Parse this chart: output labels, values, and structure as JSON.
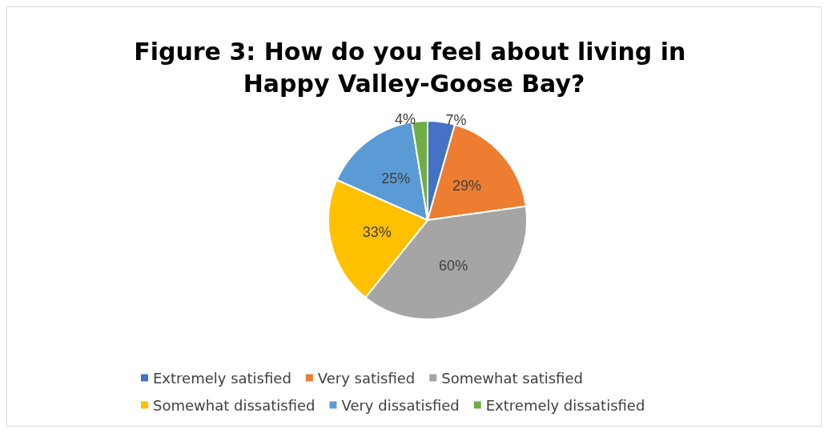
{
  "chart_data": {
    "type": "pie",
    "title": "Figure 3: How do you feel about living in Happy Valley-Goose Bay?",
    "categories": [
      "Extremely satisfied",
      "Very satisfied",
      "Somewhat satisfied",
      "Somewhat dissatisfied",
      "Very dissatisfied",
      "Extremely dissatisfied"
    ],
    "values": [
      7,
      29,
      60,
      33,
      25,
      4
    ],
    "value_labels": [
      "7%",
      "29%",
      "60%",
      "33%",
      "25%",
      "4%"
    ],
    "colors": [
      "#4472c4",
      "#ed7d31",
      "#a5a5a5",
      "#ffc000",
      "#5b9bd5",
      "#70ad47"
    ],
    "legend": "bottom"
  }
}
